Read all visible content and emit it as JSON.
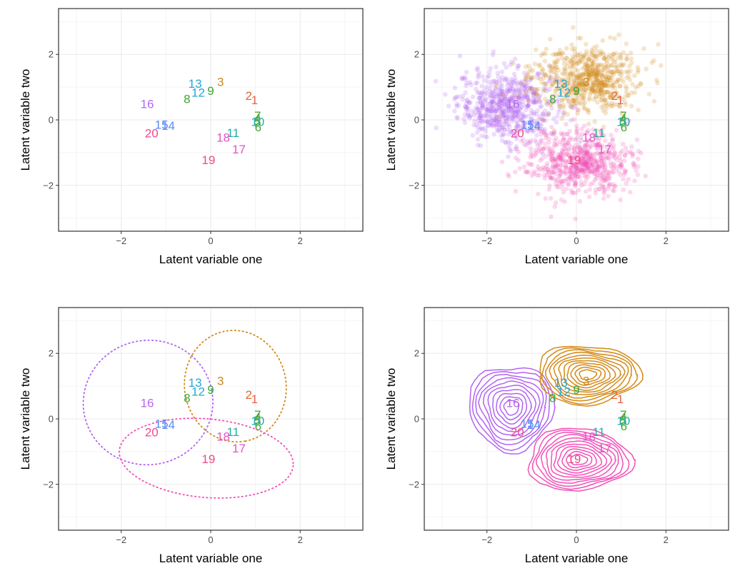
{
  "colors": {
    "label_1": "#e8614e",
    "label_2": "#dd6930",
    "label_3": "#c98a1f",
    "label_4_7": "#49a32f",
    "label_8_9": "#3aa83a",
    "label_10_11": "#23b0a3",
    "label_12_13": "#26a6d6",
    "label_14_15": "#5b8df5",
    "label_16": "#b467ec",
    "label_17_18": "#e054c8",
    "label_19_20": "#ee4a8c",
    "cluster_purple": "#b264f0",
    "cluster_orange": "#d38a18",
    "cluster_pink": "#f251b8",
    "grid": "#ebebeb",
    "border": "#333333",
    "tick_text": "#4d4d4d"
  },
  "chart_data": [
    {
      "type": "scatter",
      "panel": "top-left",
      "xlabel": "Latent variable one",
      "ylabel": "Latent variable two",
      "xlim": [
        -3.4,
        3.4
      ],
      "ylim": [
        -3.4,
        3.4
      ],
      "xticks": [
        "−2",
        "0",
        "2"
      ],
      "yticks": [
        "−2",
        "0",
        "2"
      ],
      "grid": true,
      "layers": [
        "labels"
      ]
    },
    {
      "type": "scatter",
      "panel": "top-right",
      "xlabel": "Latent variable one",
      "ylabel": "Latent variable two",
      "xlim": [
        -3.4,
        3.4
      ],
      "ylim": [
        -3.4,
        3.4
      ],
      "xticks": [
        "−2",
        "0",
        "2"
      ],
      "yticks": [
        "−2",
        "0",
        "2"
      ],
      "grid": true,
      "layers": [
        "point_clouds",
        "labels"
      ]
    },
    {
      "type": "scatter",
      "panel": "bottom-left",
      "xlabel": "Latent variable one",
      "ylabel": "Latent variable two",
      "xlim": [
        -3.4,
        3.4
      ],
      "ylim": [
        -3.4,
        3.4
      ],
      "xticks": [
        "−2",
        "0",
        "2"
      ],
      "yticks": [
        "−2",
        "0",
        "2"
      ],
      "grid": true,
      "layers": [
        "ellipses",
        "labels"
      ]
    },
    {
      "type": "scatter",
      "panel": "bottom-right",
      "xlabel": "Latent variable one",
      "ylabel": "Latent variable two",
      "xlim": [
        -3.4,
        3.4
      ],
      "ylim": [
        -3.4,
        3.4
      ],
      "xticks": [
        "−2",
        "0",
        "2"
      ],
      "yticks": [
        "−2",
        "0",
        "2"
      ],
      "grid": true,
      "layers": [
        "contours",
        "labels"
      ]
    }
  ],
  "points": [
    {
      "label": "1",
      "x": 0.98,
      "y": 0.6,
      "color": "#e8614e"
    },
    {
      "label": "2",
      "x": 0.85,
      "y": 0.73,
      "color": "#dd6930"
    },
    {
      "label": "3",
      "x": 0.22,
      "y": 1.15,
      "color": "#c98a1f"
    },
    {
      "label": "4",
      "x": 1.05,
      "y": 0.05,
      "color": "#49a32f"
    },
    {
      "label": "5",
      "x": 1.05,
      "y": -0.05,
      "color": "#49a32f"
    },
    {
      "label": "6",
      "x": 1.06,
      "y": -0.23,
      "color": "#49a32f"
    },
    {
      "label": "7",
      "x": 1.05,
      "y": 0.12,
      "color": "#49a32f"
    },
    {
      "label": "8",
      "x": -0.53,
      "y": 0.63,
      "color": "#3aa83a"
    },
    {
      "label": "9",
      "x": 0.0,
      "y": 0.88,
      "color": "#3aa83a"
    },
    {
      "label": "10",
      "x": 1.05,
      "y": -0.07,
      "color": "#23b0a3"
    },
    {
      "label": "11",
      "x": 0.5,
      "y": -0.4,
      "color": "#23b0a3"
    },
    {
      "label": "12",
      "x": -0.28,
      "y": 0.83,
      "color": "#26a6d6"
    },
    {
      "label": "13",
      "x": -0.35,
      "y": 1.1,
      "color": "#26a6d6"
    },
    {
      "label": "14",
      "x": -0.95,
      "y": -0.18,
      "color": "#5b8df5"
    },
    {
      "label": "15",
      "x": -1.1,
      "y": -0.15,
      "color": "#5b8df5"
    },
    {
      "label": "16",
      "x": -1.42,
      "y": 0.48,
      "color": "#b467ec"
    },
    {
      "label": "17",
      "x": 0.63,
      "y": -0.9,
      "color": "#e054c8"
    },
    {
      "label": "18",
      "x": 0.28,
      "y": -0.55,
      "color": "#e054c8"
    },
    {
      "label": "19",
      "x": -0.05,
      "y": -1.23,
      "color": "#ee4a8c"
    },
    {
      "label": "20",
      "x": -1.32,
      "y": -0.41,
      "color": "#ee4a8c"
    }
  ],
  "clusters": [
    {
      "color": "#b264f0",
      "cx": -1.55,
      "cy": 0.45,
      "sx": 0.55,
      "sy": 0.55,
      "n": 650
    },
    {
      "color": "#d38a18",
      "cx": 0.2,
      "cy": 1.25,
      "sx": 0.6,
      "sy": 0.5,
      "n": 650
    },
    {
      "color": "#f251b8",
      "cx": 0.05,
      "cy": -1.3,
      "sx": 0.6,
      "sy": 0.5,
      "n": 650
    }
  ],
  "ellipses": [
    {
      "color": "#b264f0",
      "cx": -1.4,
      "cy": 0.5,
      "rx": 1.45,
      "ry": 1.9,
      "angle": -10
    },
    {
      "color": "#d38a18",
      "cx": 0.55,
      "cy": 1.0,
      "rx": 1.25,
      "ry": 1.55,
      "angle": 80
    },
    {
      "color": "#f251b8",
      "cx": -0.1,
      "cy": -1.2,
      "rx": 1.95,
      "ry": 1.2,
      "angle": 5
    }
  ],
  "contours": [
    {
      "color": "#b264f0",
      "cx": -1.45,
      "cy": 0.35,
      "rx": 0.95,
      "ry": 1.3,
      "angle": 0,
      "levels": 10
    },
    {
      "color": "#d38a18",
      "cx": 0.25,
      "cy": 1.35,
      "rx": 1.15,
      "ry": 0.9,
      "angle": 0,
      "levels": 11
    },
    {
      "color": "#f251b8",
      "cx": 0.05,
      "cy": -1.25,
      "rx": 1.15,
      "ry": 0.95,
      "angle": 0,
      "levels": 11
    }
  ]
}
